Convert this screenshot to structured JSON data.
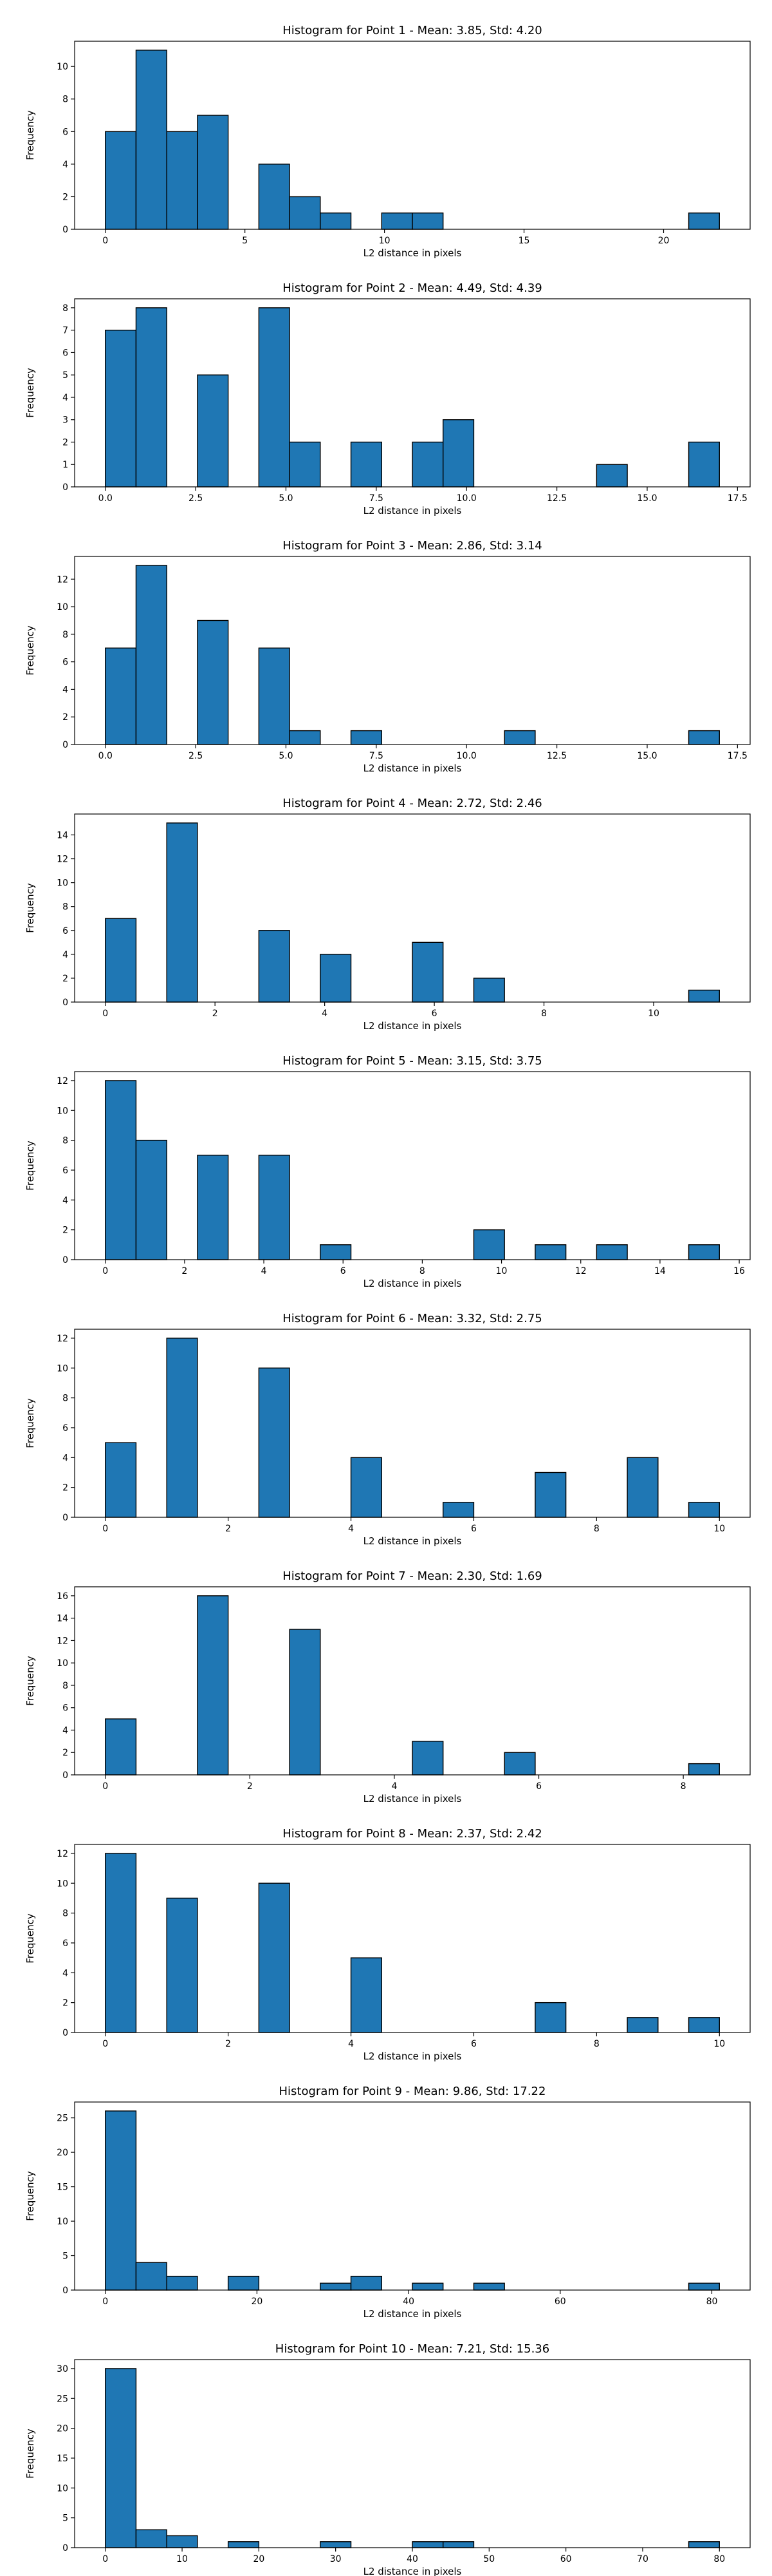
{
  "chart_data": [
    {
      "type": "bar",
      "title": "Histogram for Point 1 - Mean: 3.85, Std: 4.20",
      "xlabel": "L2 distance in pixels",
      "ylabel": "Frequency",
      "xlim": [
        -1.1,
        23.1
      ],
      "ylim": [
        0,
        11.55
      ],
      "xticks": [
        0,
        5,
        10,
        15,
        20
      ],
      "xtick_labels": [
        "0",
        "5",
        "10",
        "15",
        "20"
      ],
      "yticks": [
        0,
        2,
        4,
        6,
        8,
        10
      ],
      "ytick_labels": [
        "0",
        "2",
        "4",
        "6",
        "8",
        "10"
      ],
      "bin_edges": [
        0.0,
        1.1,
        2.2,
        3.3,
        4.4,
        5.5,
        6.6,
        7.7,
        8.8,
        9.9,
        11.0,
        12.1,
        13.2,
        14.3,
        15.4,
        16.5,
        17.6,
        18.7,
        19.8,
        20.9,
        22.0
      ],
      "values": [
        6,
        11,
        6,
        7,
        0,
        4,
        2,
        1,
        0,
        1,
        1,
        0,
        0,
        0,
        0,
        0,
        0,
        0,
        0,
        1
      ],
      "grid": false
    },
    {
      "type": "bar",
      "title": "Histogram for Point 2 - Mean: 4.49, Std: 4.39",
      "xlabel": "L2 distance in pixels",
      "ylabel": "Frequency",
      "xlim": [
        -0.85,
        17.85
      ],
      "ylim": [
        0,
        8.4
      ],
      "xticks": [
        0.0,
        2.5,
        5.0,
        7.5,
        10.0,
        12.5,
        15.0,
        17.5
      ],
      "xtick_labels": [
        "0.0",
        "2.5",
        "5.0",
        "7.5",
        "10.0",
        "12.5",
        "15.0",
        "17.5"
      ],
      "yticks": [
        0,
        1,
        2,
        3,
        4,
        5,
        6,
        7,
        8
      ],
      "ytick_labels": [
        "0",
        "1",
        "2",
        "3",
        "4",
        "5",
        "6",
        "7",
        "8"
      ],
      "bin_edges": [
        0.0,
        0.85,
        1.7,
        2.55,
        3.4,
        4.25,
        5.1,
        5.95,
        6.8,
        7.65,
        8.5,
        9.35,
        10.2,
        11.05,
        11.9,
        12.75,
        13.6,
        14.45,
        15.3,
        16.15,
        17.0
      ],
      "values": [
        7,
        8,
        0,
        5,
        0,
        8,
        2,
        0,
        2,
        0,
        2,
        3,
        0,
        0,
        0,
        0,
        1,
        0,
        0,
        2
      ],
      "grid": false
    },
    {
      "type": "bar",
      "title": "Histogram for Point 3 - Mean: 2.86, Std: 3.14",
      "xlabel": "L2 distance in pixels",
      "ylabel": "Frequency",
      "xlim": [
        -0.85,
        17.85
      ],
      "ylim": [
        0,
        13.65
      ],
      "xticks": [
        0.0,
        2.5,
        5.0,
        7.5,
        10.0,
        12.5,
        15.0,
        17.5
      ],
      "xtick_labels": [
        "0.0",
        "2.5",
        "5.0",
        "7.5",
        "10.0",
        "12.5",
        "15.0",
        "17.5"
      ],
      "yticks": [
        0,
        2,
        4,
        6,
        8,
        10,
        12
      ],
      "ytick_labels": [
        "0",
        "2",
        "4",
        "6",
        "8",
        "10",
        "12"
      ],
      "bin_edges": [
        0.0,
        0.85,
        1.7,
        2.55,
        3.4,
        4.25,
        5.1,
        5.95,
        6.8,
        7.65,
        8.5,
        9.35,
        10.2,
        11.05,
        11.9,
        12.75,
        13.6,
        14.45,
        15.3,
        16.15,
        17.0
      ],
      "values": [
        7,
        13,
        0,
        9,
        0,
        7,
        1,
        0,
        1,
        0,
        0,
        0,
        0,
        1,
        0,
        0,
        0,
        0,
        0,
        1
      ],
      "grid": false
    },
    {
      "type": "bar",
      "title": "Histogram for Point 4 - Mean: 2.72, Std: 2.46",
      "xlabel": "L2 distance in pixels",
      "ylabel": "Frequency",
      "xlim": [
        -0.56,
        11.76
      ],
      "ylim": [
        0,
        15.75
      ],
      "xticks": [
        0,
        2,
        4,
        6,
        8,
        10
      ],
      "xtick_labels": [
        "0",
        "2",
        "4",
        "6",
        "8",
        "10"
      ],
      "yticks": [
        0,
        2,
        4,
        6,
        8,
        10,
        12,
        14
      ],
      "ytick_labels": [
        "0",
        "2",
        "4",
        "6",
        "8",
        "10",
        "12",
        "14"
      ],
      "bin_edges": [
        0.0,
        0.56,
        1.12,
        1.68,
        2.24,
        2.8,
        3.36,
        3.92,
        4.48,
        5.04,
        5.6,
        6.16,
        6.72,
        7.28,
        7.84,
        8.4,
        8.96,
        9.52,
        10.08,
        10.64,
        11.2
      ],
      "values": [
        7,
        0,
        15,
        0,
        0,
        6,
        0,
        4,
        0,
        0,
        5,
        0,
        2,
        0,
        0,
        0,
        0,
        0,
        0,
        1
      ],
      "grid": false
    },
    {
      "type": "bar",
      "title": "Histogram for Point 5 - Mean: 3.15, Std: 3.75",
      "xlabel": "L2 distance in pixels",
      "ylabel": "Frequency",
      "xlim": [
        -0.775,
        16.275
      ],
      "ylim": [
        0,
        12.6
      ],
      "xticks": [
        0,
        2,
        4,
        6,
        8,
        10,
        12,
        14,
        16
      ],
      "xtick_labels": [
        "0",
        "2",
        "4",
        "6",
        "8",
        "10",
        "12",
        "14",
        "16"
      ],
      "yticks": [
        0,
        2,
        4,
        6,
        8,
        10,
        12
      ],
      "ytick_labels": [
        "0",
        "2",
        "4",
        "6",
        "8",
        "10",
        "12"
      ],
      "bin_edges": [
        0.0,
        0.775,
        1.55,
        2.325,
        3.1,
        3.875,
        4.65,
        5.425,
        6.2,
        6.975,
        7.75,
        8.525,
        9.3,
        10.075,
        10.85,
        11.625,
        12.4,
        13.175,
        13.95,
        14.725,
        15.5
      ],
      "values": [
        12,
        8,
        0,
        7,
        0,
        7,
        0,
        1,
        0,
        0,
        0,
        0,
        2,
        0,
        1,
        0,
        1,
        0,
        0,
        1
      ],
      "grid": false
    },
    {
      "type": "bar",
      "title": "Histogram for Point 6 - Mean: 3.32, Std: 2.75",
      "xlabel": "L2 distance in pixels",
      "ylabel": "Frequency",
      "xlim": [
        -0.5,
        10.5
      ],
      "ylim": [
        0,
        12.6
      ],
      "xticks": [
        0,
        2,
        4,
        6,
        8,
        10
      ],
      "xtick_labels": [
        "0",
        "2",
        "4",
        "6",
        "8",
        "10"
      ],
      "yticks": [
        0,
        2,
        4,
        6,
        8,
        10,
        12
      ],
      "ytick_labels": [
        "0",
        "2",
        "4",
        "6",
        "8",
        "10",
        "12"
      ],
      "bin_edges": [
        0.0,
        0.5,
        1.0,
        1.5,
        2.0,
        2.5,
        3.0,
        3.5,
        4.0,
        4.5,
        5.0,
        5.5,
        6.0,
        6.5,
        7.0,
        7.5,
        8.0,
        8.5,
        9.0,
        9.5,
        10.0
      ],
      "values": [
        5,
        0,
        12,
        0,
        0,
        10,
        0,
        0,
        4,
        0,
        0,
        1,
        0,
        0,
        3,
        0,
        0,
        4,
        0,
        1
      ],
      "grid": false
    },
    {
      "type": "bar",
      "title": "Histogram for Point 7 - Mean: 2.30, Std: 1.69",
      "xlabel": "L2 distance in pixels",
      "ylabel": "Frequency",
      "xlim": [
        -0.425,
        8.925
      ],
      "ylim": [
        0,
        16.8
      ],
      "xticks": [
        0,
        2,
        4,
        6,
        8
      ],
      "xtick_labels": [
        "0",
        "2",
        "4",
        "6",
        "8"
      ],
      "yticks": [
        0,
        2,
        4,
        6,
        8,
        10,
        12,
        14,
        16
      ],
      "ytick_labels": [
        "0",
        "2",
        "4",
        "6",
        "8",
        "10",
        "12",
        "14",
        "16"
      ],
      "bin_edges": [
        0.0,
        0.425,
        0.85,
        1.275,
        1.7,
        2.125,
        2.55,
        2.975,
        3.4,
        3.825,
        4.25,
        4.675,
        5.1,
        5.525,
        5.95,
        6.375,
        6.8,
        7.225,
        7.65,
        8.075,
        8.5
      ],
      "values": [
        5,
        0,
        0,
        16,
        0,
        0,
        13,
        0,
        0,
        0,
        3,
        0,
        0,
        2,
        0,
        0,
        0,
        0,
        0,
        1
      ],
      "grid": false
    },
    {
      "type": "bar",
      "title": "Histogram for Point 8 - Mean: 2.37, Std: 2.42",
      "xlabel": "L2 distance in pixels",
      "ylabel": "Frequency",
      "xlim": [
        -0.5,
        10.5
      ],
      "ylim": [
        0,
        12.6
      ],
      "xticks": [
        0,
        2,
        4,
        6,
        8,
        10
      ],
      "xtick_labels": [
        "0",
        "2",
        "4",
        "6",
        "8",
        "10"
      ],
      "yticks": [
        0,
        2,
        4,
        6,
        8,
        10,
        12
      ],
      "ytick_labels": [
        "0",
        "2",
        "4",
        "6",
        "8",
        "10",
        "12"
      ],
      "bin_edges": [
        0.0,
        0.5,
        1.0,
        1.5,
        2.0,
        2.5,
        3.0,
        3.5,
        4.0,
        4.5,
        5.0,
        5.5,
        6.0,
        6.5,
        7.0,
        7.5,
        8.0,
        8.5,
        9.0,
        9.5,
        10.0
      ],
      "values": [
        12,
        0,
        9,
        0,
        0,
        10,
        0,
        0,
        5,
        0,
        0,
        0,
        0,
        0,
        2,
        0,
        0,
        1,
        0,
        1
      ],
      "grid": false
    },
    {
      "type": "bar",
      "title": "Histogram for Point 9 - Mean: 9.86, Std: 17.22",
      "xlabel": "L2 distance in pixels",
      "ylabel": "Frequency",
      "xlim": [
        -4.05,
        85.05
      ],
      "ylim": [
        0,
        27.3
      ],
      "xticks": [
        0,
        20,
        40,
        60,
        80
      ],
      "xtick_labels": [
        "0",
        "20",
        "40",
        "60",
        "80"
      ],
      "yticks": [
        0,
        5,
        10,
        15,
        20,
        25
      ],
      "ytick_labels": [
        "0",
        "5",
        "10",
        "15",
        "20",
        "25"
      ],
      "bin_edges": [
        0.0,
        4.05,
        8.1,
        12.15,
        16.2,
        20.25,
        24.3,
        28.35,
        32.4,
        36.45,
        40.5,
        44.55,
        48.6,
        52.65,
        56.7,
        60.75,
        64.8,
        68.85,
        72.9,
        76.95,
        81.0
      ],
      "values": [
        26,
        4,
        2,
        0,
        2,
        0,
        0,
        1,
        2,
        0,
        1,
        0,
        1,
        0,
        0,
        0,
        0,
        0,
        0,
        1
      ],
      "grid": false
    },
    {
      "type": "bar",
      "title": "Histogram for Point 10 - Mean: 7.21, Std: 15.36",
      "xlabel": "L2 distance in pixels",
      "ylabel": "Frequency",
      "xlim": [
        -4.0,
        84.0
      ],
      "ylim": [
        0,
        31.5
      ],
      "xticks": [
        0,
        10,
        20,
        30,
        40,
        50,
        60,
        70,
        80
      ],
      "xtick_labels": [
        "0",
        "10",
        "20",
        "30",
        "40",
        "50",
        "60",
        "70",
        "80"
      ],
      "yticks": [
        0,
        5,
        10,
        15,
        20,
        25,
        30
      ],
      "ytick_labels": [
        "0",
        "5",
        "10",
        "15",
        "20",
        "25",
        "30"
      ],
      "bin_edges": [
        0.0,
        4.0,
        8.0,
        12.0,
        16.0,
        20.0,
        24.0,
        28.0,
        32.0,
        36.0,
        40.0,
        44.0,
        48.0,
        52.0,
        56.0,
        60.0,
        64.0,
        68.0,
        72.0,
        76.0,
        80.0
      ],
      "values": [
        30,
        3,
        2,
        0,
        1,
        0,
        0,
        1,
        0,
        0,
        1,
        1,
        0,
        0,
        0,
        0,
        0,
        0,
        0,
        1
      ],
      "grid": false
    }
  ]
}
